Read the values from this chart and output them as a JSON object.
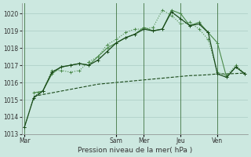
{
  "background_color": "#cce8e0",
  "grid_color": "#aaccc4",
  "line_color_light": "#4a8a4a",
  "line_color_dark": "#1a4a1a",
  "xlabel": "Pression niveau de la mer( hPa )",
  "ylim": [
    1013.0,
    1020.6
  ],
  "yticks": [
    1013,
    1014,
    1015,
    1016,
    1017,
    1018,
    1019,
    1020
  ],
  "day_labels": [
    "Mar",
    "Sam",
    "Mer",
    "Jeu",
    "Ven"
  ],
  "day_tick_positions": [
    0,
    10,
    13,
    17,
    21
  ],
  "xlim": [
    -0.3,
    24.3
  ],
  "line1_x": [
    0,
    1,
    1.5,
    2,
    3,
    4,
    5,
    6,
    7,
    8,
    9,
    10,
    11,
    12,
    13,
    14,
    15,
    16,
    17,
    18,
    19,
    20,
    21,
    22,
    23,
    24
  ],
  "line1_y": [
    1013.4,
    1015.1,
    1015.4,
    1015.5,
    1016.7,
    1016.7,
    1016.6,
    1016.7,
    1017.2,
    1017.5,
    1018.2,
    1018.5,
    1018.9,
    1019.1,
    1019.1,
    1019.2,
    1020.2,
    1019.9,
    1019.4,
    1019.5,
    1019.1,
    1018.5,
    1016.6,
    1016.4,
    1017.0,
    1016.5
  ],
  "line2_x": [
    0,
    1,
    2,
    3,
    4,
    5,
    6,
    7,
    8,
    9,
    10,
    11,
    12,
    13,
    14,
    15,
    16,
    17,
    18,
    19,
    20,
    21,
    22,
    23,
    24
  ],
  "line2_y": [
    1013.4,
    1015.1,
    1015.5,
    1016.6,
    1016.9,
    1017.0,
    1017.1,
    1017.0,
    1017.3,
    1017.8,
    1018.3,
    1018.6,
    1018.8,
    1019.1,
    1019.0,
    1019.1,
    1020.1,
    1019.7,
    1019.3,
    1019.4,
    1018.9,
    1016.5,
    1016.3,
    1016.9,
    1016.5
  ],
  "line3_x": [
    1,
    2,
    3,
    4,
    5,
    6,
    7,
    8,
    9,
    10,
    11,
    12,
    13,
    14,
    15,
    16,
    17,
    18,
    19,
    20,
    21,
    22,
    23,
    24
  ],
  "line3_y": [
    1015.4,
    1015.5,
    1016.5,
    1016.9,
    1017.0,
    1017.1,
    1017.0,
    1017.5,
    1018.0,
    1018.3,
    1018.6,
    1018.8,
    1019.2,
    1019.0,
    1019.1,
    1020.2,
    1020.0,
    1019.3,
    1019.5,
    1018.9,
    1018.3,
    1016.3,
    1016.9,
    1016.5
  ],
  "line4_x": [
    1,
    2,
    3,
    4,
    5,
    6,
    7,
    8,
    9,
    10,
    11,
    12,
    13,
    14,
    15,
    16,
    17,
    18,
    19,
    20,
    21,
    22,
    23,
    24
  ],
  "line4_y": [
    1015.2,
    1015.3,
    1015.4,
    1015.5,
    1015.6,
    1015.7,
    1015.8,
    1015.9,
    1015.95,
    1016.0,
    1016.05,
    1016.1,
    1016.15,
    1016.2,
    1016.25,
    1016.3,
    1016.35,
    1016.4,
    1016.42,
    1016.45,
    1016.5,
    1016.5,
    1016.52,
    1016.55
  ]
}
